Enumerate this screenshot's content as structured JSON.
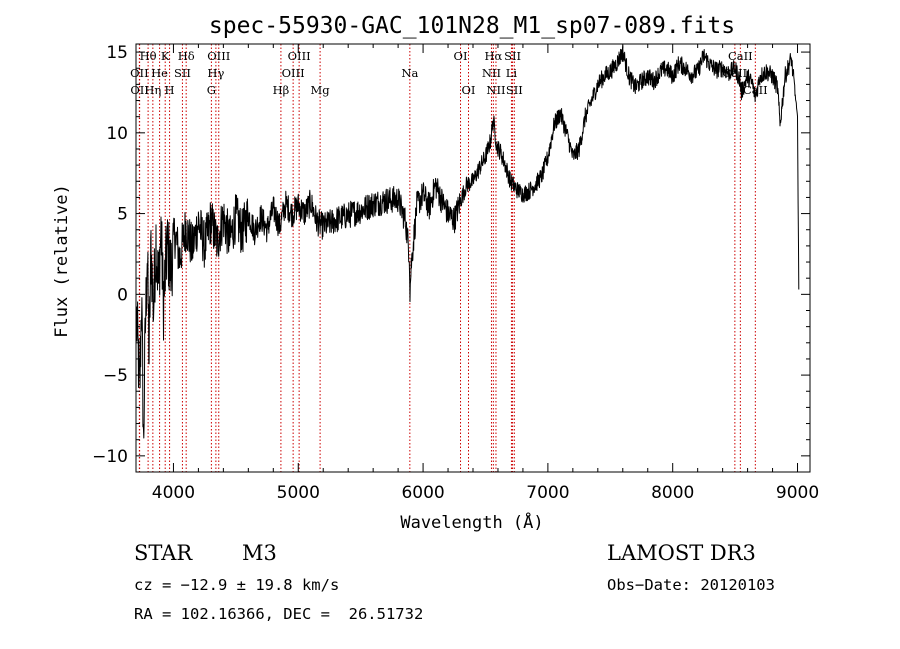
{
  "chart_data": {
    "type": "line",
    "title": "spec-55930-GAC_101N28_M1_sp07-089.fits",
    "xlabel": "Wavelength (Å)",
    "ylabel": "Flux (relative)",
    "xlim": [
      3700,
      9100
    ],
    "ylim": [
      -11,
      15.5
    ],
    "xticks": [
      4000,
      5000,
      6000,
      7000,
      8000,
      9000
    ],
    "yticks": [
      -10,
      -5,
      0,
      5,
      10,
      15
    ],
    "grid": false,
    "series": [
      {
        "name": "spectrum",
        "color": "#000000",
        "anchors": [
          [
            3705,
            -1.5
          ],
          [
            3730,
            -6
          ],
          [
            3745,
            0
          ],
          [
            3760,
            -9.5
          ],
          [
            3775,
            -2
          ],
          [
            3790,
            2.5
          ],
          [
            3805,
            -4
          ],
          [
            3820,
            3
          ],
          [
            3840,
            -1
          ],
          [
            3860,
            3.5
          ],
          [
            3880,
            0.5
          ],
          [
            3900,
            4
          ],
          [
            3920,
            -0.5
          ],
          [
            3950,
            3
          ],
          [
            3980,
            1.5
          ],
          [
            4010,
            3.8
          ],
          [
            4050,
            2.2
          ],
          [
            4100,
            4.2
          ],
          [
            4150,
            2.8
          ],
          [
            4200,
            4.5
          ],
          [
            4250,
            3
          ],
          [
            4300,
            4.6
          ],
          [
            4350,
            3.2
          ],
          [
            4400,
            4.8
          ],
          [
            4450,
            3.3
          ],
          [
            4500,
            4.8
          ],
          [
            4550,
            3.8
          ],
          [
            4600,
            5.0
          ],
          [
            4650,
            3.9
          ],
          [
            4700,
            4.8
          ],
          [
            4750,
            4.0
          ],
          [
            4800,
            5.3
          ],
          [
            4850,
            4.2
          ],
          [
            4900,
            5.6
          ],
          [
            4950,
            5.0
          ],
          [
            5000,
            5.5
          ],
          [
            5050,
            5.0
          ],
          [
            5100,
            5.7
          ],
          [
            5150,
            4.5
          ],
          [
            5200,
            4.2
          ],
          [
            5300,
            4.6
          ],
          [
            5400,
            4.9
          ],
          [
            5500,
            5.2
          ],
          [
            5600,
            5.6
          ],
          [
            5700,
            5.8
          ],
          [
            5800,
            5.9
          ],
          [
            5860,
            4.5
          ],
          [
            5890,
            2.5
          ],
          [
            5895,
            0.2
          ],
          [
            5905,
            1.8
          ],
          [
            5950,
            5.5
          ],
          [
            6000,
            6.2
          ],
          [
            6050,
            5.4
          ],
          [
            6100,
            6.8
          ],
          [
            6150,
            5.8
          ],
          [
            6200,
            5.0
          ],
          [
            6250,
            4.6
          ],
          [
            6300,
            5.8
          ],
          [
            6350,
            6.8
          ],
          [
            6400,
            7.0
          ],
          [
            6450,
            7.8
          ],
          [
            6500,
            8.5
          ],
          [
            6540,
            9.5
          ],
          [
            6563,
            10.8
          ],
          [
            6590,
            9.2
          ],
          [
            6620,
            8.8
          ],
          [
            6650,
            8.2
          ],
          [
            6700,
            7.0
          ],
          [
            6750,
            6.5
          ],
          [
            6800,
            6.2
          ],
          [
            6850,
            6.4
          ],
          [
            6900,
            6.8
          ],
          [
            6950,
            7.3
          ],
          [
            7000,
            8.5
          ],
          [
            7050,
            10.5
          ],
          [
            7100,
            11.2
          ],
          [
            7150,
            10.0
          ],
          [
            7200,
            8.5
          ],
          [
            7250,
            9.0
          ],
          [
            7300,
            11.0
          ],
          [
            7350,
            12.0
          ],
          [
            7400,
            13.0
          ],
          [
            7450,
            13.5
          ],
          [
            7500,
            13.8
          ],
          [
            7550,
            14.3
          ],
          [
            7600,
            15.0
          ],
          [
            7650,
            13.5
          ],
          [
            7700,
            12.8
          ],
          [
            7750,
            13.2
          ],
          [
            7800,
            13.5
          ],
          [
            7850,
            13.2
          ],
          [
            7900,
            13.8
          ],
          [
            7950,
            14.0
          ],
          [
            8000,
            13.5
          ],
          [
            8050,
            14.3
          ],
          [
            8100,
            14.0
          ],
          [
            8150,
            13.6
          ],
          [
            8200,
            13.8
          ],
          [
            8250,
            14.8
          ],
          [
            8300,
            14.2
          ],
          [
            8350,
            13.9
          ],
          [
            8400,
            14.0
          ],
          [
            8450,
            13.7
          ],
          [
            8500,
            14.0
          ],
          [
            8540,
            13.2
          ],
          [
            8550,
            12.5
          ],
          [
            8600,
            13.5
          ],
          [
            8640,
            13.0
          ],
          [
            8662,
            12.2
          ],
          [
            8700,
            13.5
          ],
          [
            8750,
            13.8
          ],
          [
            8800,
            13.5
          ],
          [
            8840,
            12.8
          ],
          [
            8860,
            10.5
          ],
          [
            8900,
            13.5
          ],
          [
            8950,
            14.6
          ],
          [
            8980,
            12.5
          ],
          [
            9000,
            11.0
          ],
          [
            9010,
            0.2
          ]
        ]
      }
    ],
    "emission_lines": [
      {
        "label": "Hθ",
        "wavelength": 3797,
        "row": 0
      },
      {
        "label": "OII",
        "wavelength": 3727,
        "row": 1
      },
      {
        "label": "OII",
        "wavelength": 3729,
        "row": 2
      },
      {
        "label": "K",
        "wavelength": 3934,
        "row": 0
      },
      {
        "label": "He",
        "wavelength": 3889,
        "row": 1
      },
      {
        "label": "Hη",
        "wavelength": 3835,
        "row": 2
      },
      {
        "label": "Hδ",
        "wavelength": 4102,
        "row": 0
      },
      {
        "label": "SII",
        "wavelength": 4072,
        "row": 1
      },
      {
        "label": "H",
        "wavelength": 3969,
        "row": 2
      },
      {
        "label": "OIII",
        "wavelength": 4363,
        "row": 0
      },
      {
        "label": "Hγ",
        "wavelength": 4340,
        "row": 1
      },
      {
        "label": "G",
        "wavelength": 4304,
        "row": 2
      },
      {
        "label": "OIII",
        "wavelength": 5007,
        "row": 0
      },
      {
        "label": "OIII",
        "wavelength": 4959,
        "row": 1
      },
      {
        "label": "Hβ",
        "wavelength": 4861,
        "row": 2
      },
      {
        "label": "Mg",
        "wavelength": 5175,
        "row": 2
      },
      {
        "label": "Na",
        "wavelength": 5894,
        "row": 1
      },
      {
        "label": "OI",
        "wavelength": 6300,
        "row": 0
      },
      {
        "label": "OI",
        "wavelength": 6364,
        "row": 2
      },
      {
        "label": "Hα",
        "wavelength": 6563,
        "row": 0
      },
      {
        "label": "SII",
        "wavelength": 6717,
        "row": 0
      },
      {
        "label": "NII",
        "wavelength": 6548,
        "row": 1
      },
      {
        "label": "Li",
        "wavelength": 6708,
        "row": 1
      },
      {
        "label": "NII",
        "wavelength": 6584,
        "row": 2
      },
      {
        "label": "SII",
        "wavelength": 6731,
        "row": 2
      },
      {
        "label": "CaII",
        "wavelength": 8542,
        "row": 0
      },
      {
        "label": "CaII",
        "wavelength": 8498,
        "row": 1
      },
      {
        "label": "CaII",
        "wavelength": 8662,
        "row": 2
      }
    ]
  },
  "info": {
    "object_class": "STAR",
    "subclass": "M3",
    "cz": "cz = −12.9 ± 19.8 km/s",
    "coords": "RA = 102.16366, DEC =  26.51732",
    "survey": "LAMOST DR3",
    "obs_date": "Obs−Date: 20120103"
  },
  "colors": {
    "spectrum": "#000000",
    "line_markers": "#cc0000",
    "axes": "#000000",
    "background": "#ffffff"
  }
}
